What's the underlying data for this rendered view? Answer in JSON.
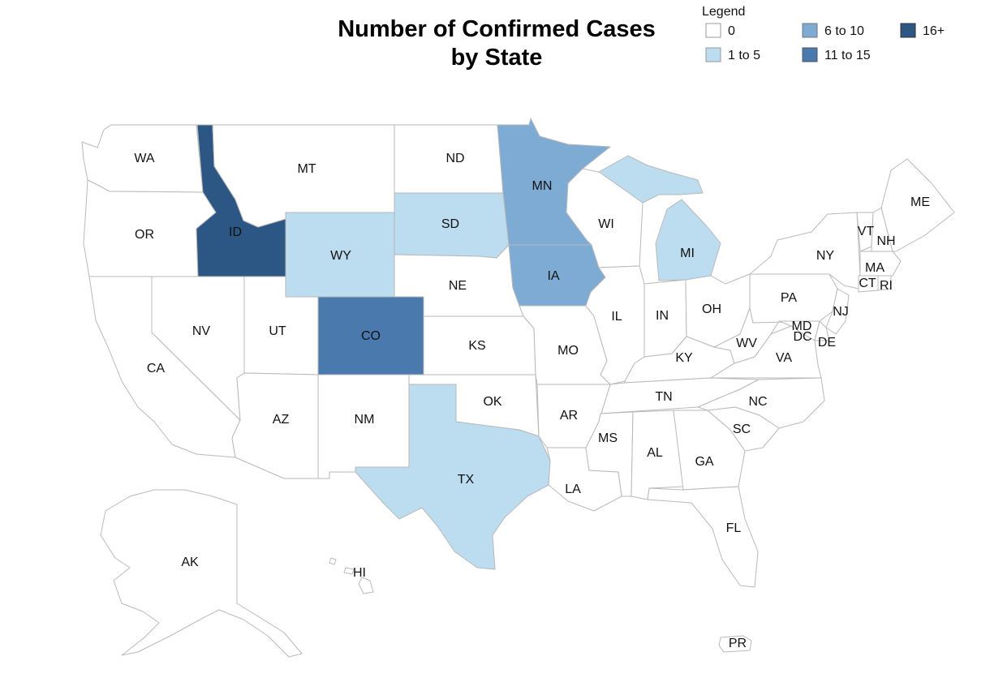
{
  "title_line1": "Number of Confirmed Cases",
  "title_line2": "by State",
  "legend": {
    "title": "Legend",
    "items": [
      {
        "label": "0",
        "color": "#ffffff"
      },
      {
        "label": "1 to 5",
        "color": "#bcdcf0"
      },
      {
        "label": "6 to 10",
        "color": "#7eabd3"
      },
      {
        "label": "11 to 15",
        "color": "#4a79ad"
      },
      {
        "label": "16+",
        "color": "#2c5684"
      }
    ]
  },
  "states": [
    {
      "abbr": "WA",
      "bin": 0
    },
    {
      "abbr": "OR",
      "bin": 0
    },
    {
      "abbr": "CA",
      "bin": 0
    },
    {
      "abbr": "ID",
      "bin": 4
    },
    {
      "abbr": "NV",
      "bin": 0
    },
    {
      "abbr": "UT",
      "bin": 0
    },
    {
      "abbr": "AZ",
      "bin": 0
    },
    {
      "abbr": "MT",
      "bin": 0
    },
    {
      "abbr": "WY",
      "bin": 1
    },
    {
      "abbr": "CO",
      "bin": 3
    },
    {
      "abbr": "NM",
      "bin": 0
    },
    {
      "abbr": "ND",
      "bin": 0
    },
    {
      "abbr": "SD",
      "bin": 1
    },
    {
      "abbr": "NE",
      "bin": 0
    },
    {
      "abbr": "KS",
      "bin": 0
    },
    {
      "abbr": "OK",
      "bin": 0
    },
    {
      "abbr": "TX",
      "bin": 1
    },
    {
      "abbr": "MN",
      "bin": 2
    },
    {
      "abbr": "IA",
      "bin": 2
    },
    {
      "abbr": "MO",
      "bin": 0
    },
    {
      "abbr": "AR",
      "bin": 0
    },
    {
      "abbr": "LA",
      "bin": 0
    },
    {
      "abbr": "WI",
      "bin": 0
    },
    {
      "abbr": "IL",
      "bin": 0
    },
    {
      "abbr": "MI",
      "bin": 1
    },
    {
      "abbr": "IN",
      "bin": 0
    },
    {
      "abbr": "OH",
      "bin": 0
    },
    {
      "abbr": "KY",
      "bin": 0
    },
    {
      "abbr": "TN",
      "bin": 0
    },
    {
      "abbr": "MS",
      "bin": 0
    },
    {
      "abbr": "AL",
      "bin": 0
    },
    {
      "abbr": "GA",
      "bin": 0
    },
    {
      "abbr": "FL",
      "bin": 0
    },
    {
      "abbr": "SC",
      "bin": 0
    },
    {
      "abbr": "NC",
      "bin": 0
    },
    {
      "abbr": "VA",
      "bin": 0
    },
    {
      "abbr": "WV",
      "bin": 0
    },
    {
      "abbr": "PA",
      "bin": 0
    },
    {
      "abbr": "NY",
      "bin": 0
    },
    {
      "abbr": "NJ",
      "bin": 0
    },
    {
      "abbr": "MD",
      "bin": 0
    },
    {
      "abbr": "DC",
      "bin": 0
    },
    {
      "abbr": "DE",
      "bin": 0
    },
    {
      "abbr": "VT",
      "bin": 0
    },
    {
      "abbr": "NH",
      "bin": 0
    },
    {
      "abbr": "ME",
      "bin": 0
    },
    {
      "abbr": "MA",
      "bin": 0
    },
    {
      "abbr": "CT",
      "bin": 0
    },
    {
      "abbr": "RI",
      "bin": 0
    },
    {
      "abbr": "AK",
      "bin": 0
    },
    {
      "abbr": "HI",
      "bin": 0
    },
    {
      "abbr": "PR",
      "bin": 0
    }
  ]
}
